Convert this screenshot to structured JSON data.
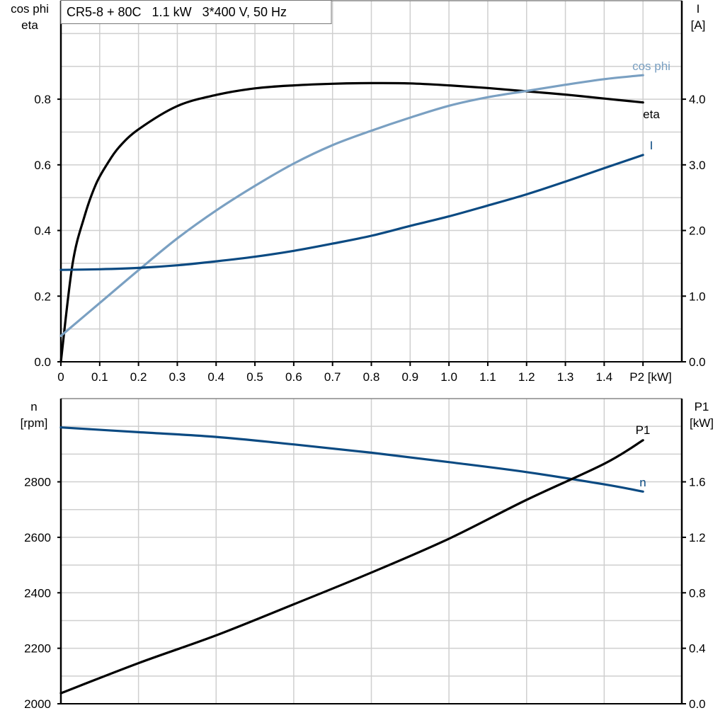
{
  "chart_data": [
    {
      "type": "line",
      "title": "CR5-8 + 80C   1.1 kW   3*400 V, 50 Hz",
      "xlabel": "P2 [kW]",
      "ylabel_left": [
        "cos phi",
        "eta"
      ],
      "ylabel_right": [
        "I",
        "[A]"
      ],
      "xlim": [
        0,
        1.6
      ],
      "ylim_left": [
        0,
        1.1
      ],
      "ylim_right": [
        0,
        5.5
      ],
      "grid": true,
      "x_ticks": [
        "0",
        "0.1",
        "0.2",
        "0.3",
        "0.4",
        "0.5",
        "0.6",
        "0.7",
        "0.8",
        "0.9",
        "1.0",
        "1.1",
        "1.2",
        "1.3",
        "1.4"
      ],
      "y_ticks_left": [
        "0.0",
        "0.2",
        "0.4",
        "0.6",
        "0.8"
      ],
      "y_ticks_right": [
        "0.0",
        "1.0",
        "2.0",
        "3.0",
        "4.0"
      ],
      "series": [
        {
          "name": "eta",
          "axis": "left",
          "color": "#000000",
          "x": [
            0,
            0.03,
            0.06,
            0.09,
            0.12,
            0.15,
            0.2,
            0.3,
            0.4,
            0.5,
            0.6,
            0.7,
            0.8,
            0.9,
            1.0,
            1.1,
            1.2,
            1.3,
            1.4,
            1.5
          ],
          "y": [
            0,
            0.297,
            0.44,
            0.54,
            0.604,
            0.654,
            0.708,
            0.779,
            0.813,
            0.833,
            0.842,
            0.847,
            0.849,
            0.848,
            0.842,
            0.834,
            0.824,
            0.814,
            0.802,
            0.79
          ]
        },
        {
          "name": "cos phi",
          "axis": "left",
          "color": "#7aa0c2",
          "x": [
            0,
            0.1,
            0.2,
            0.3,
            0.4,
            0.5,
            0.6,
            0.7,
            0.8,
            0.9,
            1.0,
            1.1,
            1.2,
            1.3,
            1.4,
            1.5
          ],
          "y": [
            0.079,
            0.179,
            0.279,
            0.376,
            0.461,
            0.536,
            0.604,
            0.66,
            0.704,
            0.744,
            0.78,
            0.806,
            0.825,
            0.844,
            0.861,
            0.873
          ]
        },
        {
          "name": "I",
          "axis": "right",
          "color": "#0b4a82",
          "x": [
            0,
            0.1,
            0.2,
            0.3,
            0.4,
            0.5,
            0.6,
            0.7,
            0.8,
            0.9,
            1.0,
            1.1,
            1.2,
            1.3,
            1.4,
            1.5
          ],
          "y": [
            1.4,
            1.41,
            1.43,
            1.47,
            1.53,
            1.6,
            1.69,
            1.8,
            1.92,
            2.07,
            2.215,
            2.38,
            2.55,
            2.745,
            2.95,
            3.15
          ]
        }
      ]
    },
    {
      "type": "line",
      "ylabel_left": [
        "n",
        "[rpm]"
      ],
      "ylabel_right": [
        "P1",
        "[kW]"
      ],
      "xlim": [
        0,
        1.6
      ],
      "ylim_left": [
        2000,
        3100
      ],
      "ylim_right": [
        0,
        2.2
      ],
      "grid": true,
      "y_ticks_left": [
        "2000",
        "2200",
        "2400",
        "2600",
        "2800"
      ],
      "y_ticks_right": [
        "0.0",
        "0.4",
        "0.8",
        "1.2",
        "1.6"
      ],
      "series": [
        {
          "name": "n",
          "axis": "left",
          "color": "#0b4a82",
          "x": [
            0,
            0.2,
            0.4,
            0.6,
            0.8,
            1.0,
            1.2,
            1.4,
            1.5
          ],
          "y": [
            2996,
            2979,
            2962,
            2935,
            2905,
            2871,
            2835,
            2791,
            2765
          ]
        },
        {
          "name": "P1",
          "axis": "right",
          "color": "#000000",
          "x": [
            0,
            0.2,
            0.4,
            0.6,
            0.8,
            1.0,
            1.2,
            1.4,
            1.5
          ],
          "y": [
            0.076,
            0.293,
            0.493,
            0.717,
            0.946,
            1.19,
            1.47,
            1.73,
            1.9
          ]
        }
      ]
    }
  ]
}
